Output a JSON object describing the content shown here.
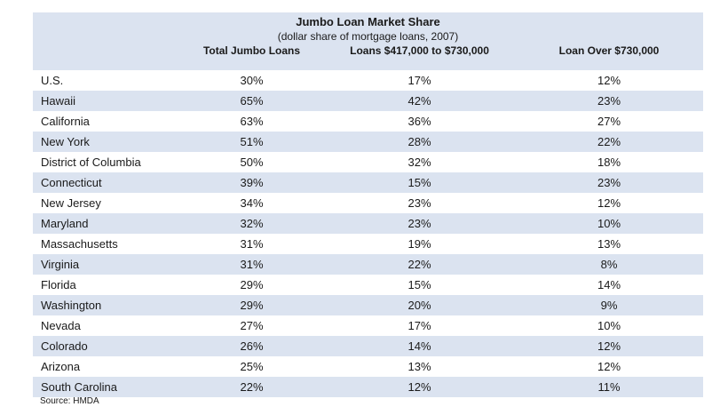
{
  "chart_data": {
    "type": "table",
    "title": "Jumbo Loan Market Share",
    "subtitle": "(dollar share of mortgage loans, 2007)",
    "columns": [
      "",
      "Total Jumbo Loans",
      "Loans $417,000 to $730,000",
      "Loan Over $730,000"
    ],
    "rows": [
      {
        "label": "U.S.",
        "values": [
          "30%",
          "17%",
          "12%"
        ]
      },
      {
        "label": "Hawaii",
        "values": [
          "65%",
          "42%",
          "23%"
        ]
      },
      {
        "label": "California",
        "values": [
          "63%",
          "36%",
          "27%"
        ]
      },
      {
        "label": "New York",
        "values": [
          "51%",
          "28%",
          "22%"
        ]
      },
      {
        "label": "District of Columbia",
        "values": [
          "50%",
          "32%",
          "18%"
        ]
      },
      {
        "label": "Connecticut",
        "values": [
          "39%",
          "15%",
          "23%"
        ]
      },
      {
        "label": "New Jersey",
        "values": [
          "34%",
          "23%",
          "12%"
        ]
      },
      {
        "label": "Maryland",
        "values": [
          "32%",
          "23%",
          "10%"
        ]
      },
      {
        "label": "Massachusetts",
        "values": [
          "31%",
          "19%",
          "13%"
        ]
      },
      {
        "label": "Virginia",
        "values": [
          "31%",
          "22%",
          "8%"
        ]
      },
      {
        "label": "Florida",
        "values": [
          "29%",
          "15%",
          "14%"
        ]
      },
      {
        "label": "Washington",
        "values": [
          "29%",
          "20%",
          "9%"
        ]
      },
      {
        "label": "Nevada",
        "values": [
          "27%",
          "17%",
          "10%"
        ]
      },
      {
        "label": "Colorado",
        "values": [
          "26%",
          "14%",
          "12%"
        ]
      },
      {
        "label": "Arizona",
        "values": [
          "25%",
          "13%",
          "12%"
        ]
      },
      {
        "label": "South Carolina",
        "values": [
          "22%",
          "12%",
          "11%"
        ]
      }
    ],
    "source": "Source: HMDA",
    "colors": {
      "band": "#dbe3f0",
      "text": "#1a1a1a"
    }
  }
}
